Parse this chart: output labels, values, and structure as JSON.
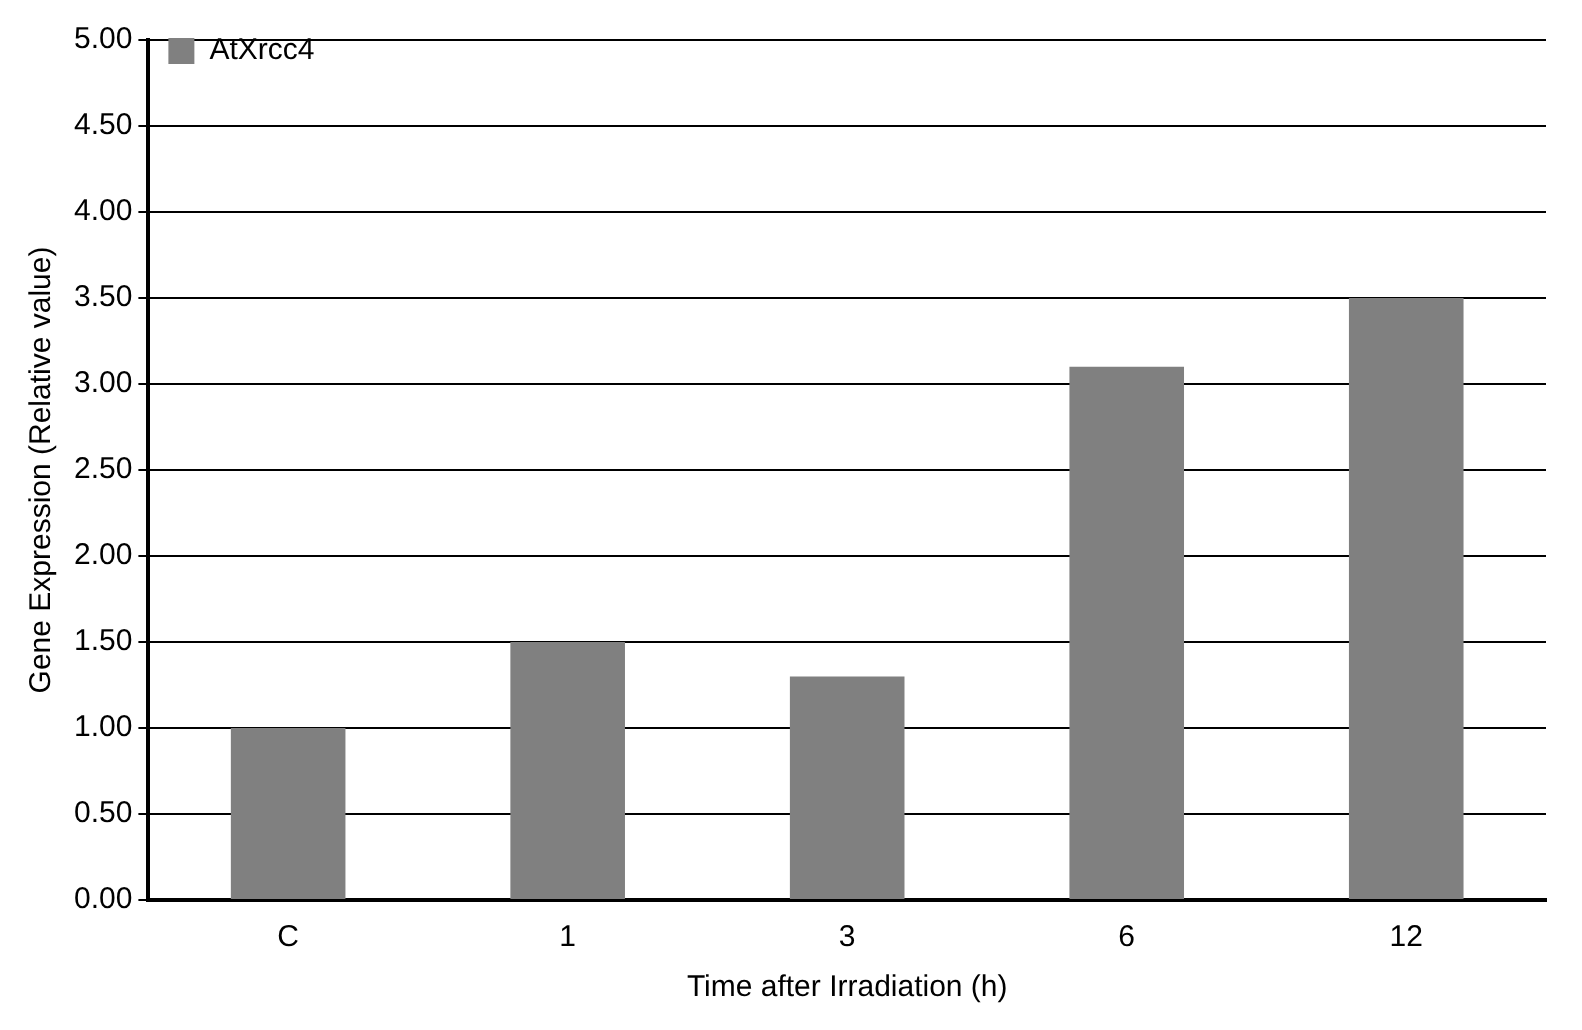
{
  "chart_data": {
    "type": "bar",
    "xlabel": "Time after Irradiation (h)",
    "ylabel": "Gene Expression (Relative value)",
    "categories": [
      "C",
      "1",
      "3",
      "6",
      "12"
    ],
    "series": [
      {
        "name": "AtXrcc4",
        "color": "#808080",
        "values": [
          1.0,
          1.5,
          1.3,
          3.1,
          3.5
        ]
      }
    ],
    "ylim": [
      0,
      5
    ],
    "yticks": [
      {
        "value": 0,
        "label": "0.00"
      },
      {
        "value": 0.5,
        "label": "0.50"
      },
      {
        "value": 1,
        "label": "1.00"
      },
      {
        "value": 1.5,
        "label": "1.50"
      },
      {
        "value": 2,
        "label": "2.00"
      },
      {
        "value": 2.5,
        "label": "2.50"
      },
      {
        "value": 3,
        "label": "3.00"
      },
      {
        "value": 3.5,
        "label": "3.50"
      },
      {
        "value": 4,
        "label": "4.00"
      },
      {
        "value": 4.5,
        "label": "4.50"
      },
      {
        "value": 5,
        "label": "5.00"
      }
    ],
    "grid": "y",
    "legend": "top left"
  }
}
